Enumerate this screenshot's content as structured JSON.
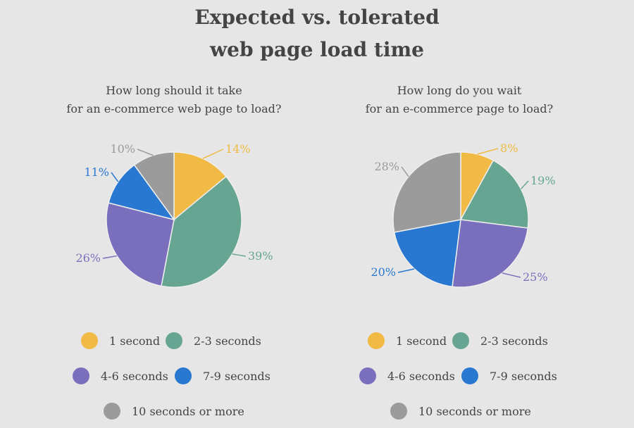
{
  "title_line1": "Expected vs. tolerated",
  "title_line2": "web page load time",
  "chart_data": [
    {
      "type": "pie",
      "title_line1": "How long should it take",
      "title_line2": "for an e-commerce web page to load?",
      "categories": [
        "1 second",
        "2-3 seconds",
        "4-6 seconds",
        "7-9 seconds",
        "10 seconds or more"
      ],
      "values": [
        14,
        39,
        26,
        11,
        10
      ],
      "labels": [
        "14%",
        "39%",
        "26%",
        "11%",
        "10%"
      ],
      "start": "top, clockwise",
      "legend": "bottom"
    },
    {
      "type": "pie",
      "title_line1": "How long do you wait",
      "title_line2": "for an e-commerce page to load?",
      "categories": [
        "1 second",
        "2-3 seconds",
        "4-6 seconds",
        "7-9 seconds",
        "10 seconds or more"
      ],
      "values": [
        8,
        19,
        25,
        20,
        28
      ],
      "labels": [
        "8%",
        "19%",
        "25%",
        "20%",
        "28%"
      ],
      "start": "top, clockwise",
      "legend": "bottom"
    }
  ],
  "colors": [
    "#f0ba45",
    "#66a592",
    "#7a6fbc",
    "#2877d0",
    "#9b9b9b"
  ],
  "background": "#e6e6e6"
}
